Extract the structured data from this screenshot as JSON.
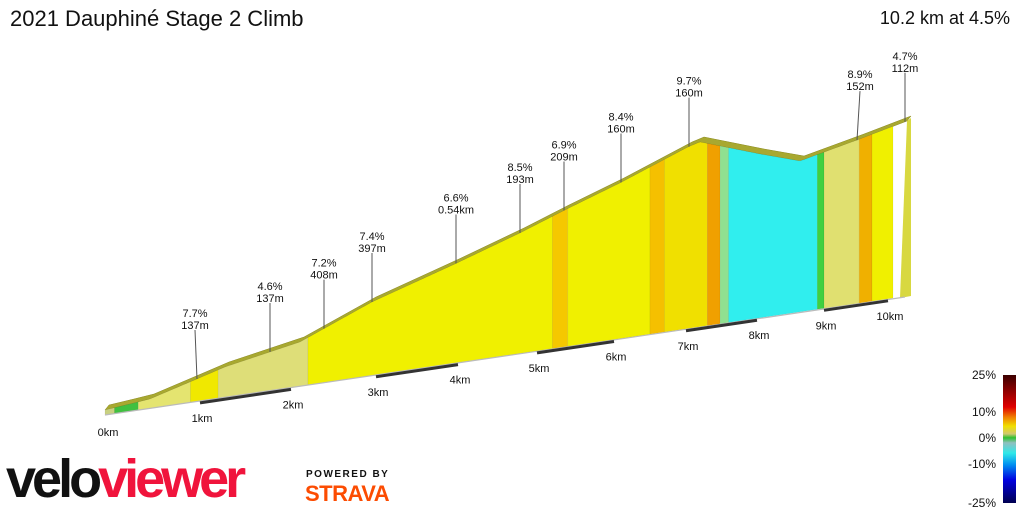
{
  "title": "2021 Dauphiné Stage 2 Climb",
  "summary": "10.2 km at 4.5%",
  "km_labels": [
    "0km",
    "1km",
    "2km",
    "3km",
    "4km",
    "5km",
    "6km",
    "7km",
    "8km",
    "9km",
    "10km"
  ],
  "annotations": [
    {
      "grade": "7.7%",
      "length": "137m"
    },
    {
      "grade": "4.6%",
      "length": "137m"
    },
    {
      "grade": "7.2%",
      "length": "408m"
    },
    {
      "grade": "7.4%",
      "length": "397m"
    },
    {
      "grade": "6.6%",
      "length": "0.54km"
    },
    {
      "grade": "8.5%",
      "length": "193m"
    },
    {
      "grade": "6.9%",
      "length": "209m"
    },
    {
      "grade": "8.4%",
      "length": "160m"
    },
    {
      "grade": "9.7%",
      "length": "160m"
    },
    {
      "grade": "8.9%",
      "length": "152m"
    },
    {
      "grade": "4.7%",
      "length": "112m"
    }
  ],
  "segments": [
    {
      "from": 0,
      "to": 0.1,
      "color": "#c8d080"
    },
    {
      "from": 0.1,
      "to": 0.35,
      "color": "#40c040"
    },
    {
      "from": 0.35,
      "to": 0.9,
      "color": "#e4e470"
    },
    {
      "from": 0.9,
      "to": 1.2,
      "color": "#f0e800"
    },
    {
      "from": 1.2,
      "to": 2.2,
      "color": "#dede78"
    },
    {
      "from": 2.2,
      "to": 5.2,
      "color": "#f0f000"
    },
    {
      "from": 5.2,
      "to": 5.4,
      "color": "#f5c800"
    },
    {
      "from": 5.4,
      "to": 6.5,
      "color": "#f0f000"
    },
    {
      "from": 6.5,
      "to": 6.7,
      "color": "#f5c000"
    },
    {
      "from": 6.7,
      "to": 7.3,
      "color": "#f0e000"
    },
    {
      "from": 7.3,
      "to": 7.48,
      "color": "#f0a000"
    },
    {
      "from": 7.48,
      "to": 7.6,
      "color": "#90e090"
    },
    {
      "from": 7.6,
      "to": 8.9,
      "color": "#30eeee"
    },
    {
      "from": 8.9,
      "to": 9.0,
      "color": "#40d040"
    },
    {
      "from": 9.0,
      "to": 9.55,
      "color": "#e0e070"
    },
    {
      "from": 9.55,
      "to": 9.75,
      "color": "#f0b000"
    },
    {
      "from": 9.75,
      "to": 10.2,
      "color": "#f0f000"
    }
  ],
  "legend": [
    "25%",
    "10%",
    "0%",
    "-10%",
    "-25%"
  ],
  "logo": {
    "part1": "velo",
    "part2": "viewer"
  },
  "powered_by": "POWERED BY",
  "strava": "STRAVA"
}
